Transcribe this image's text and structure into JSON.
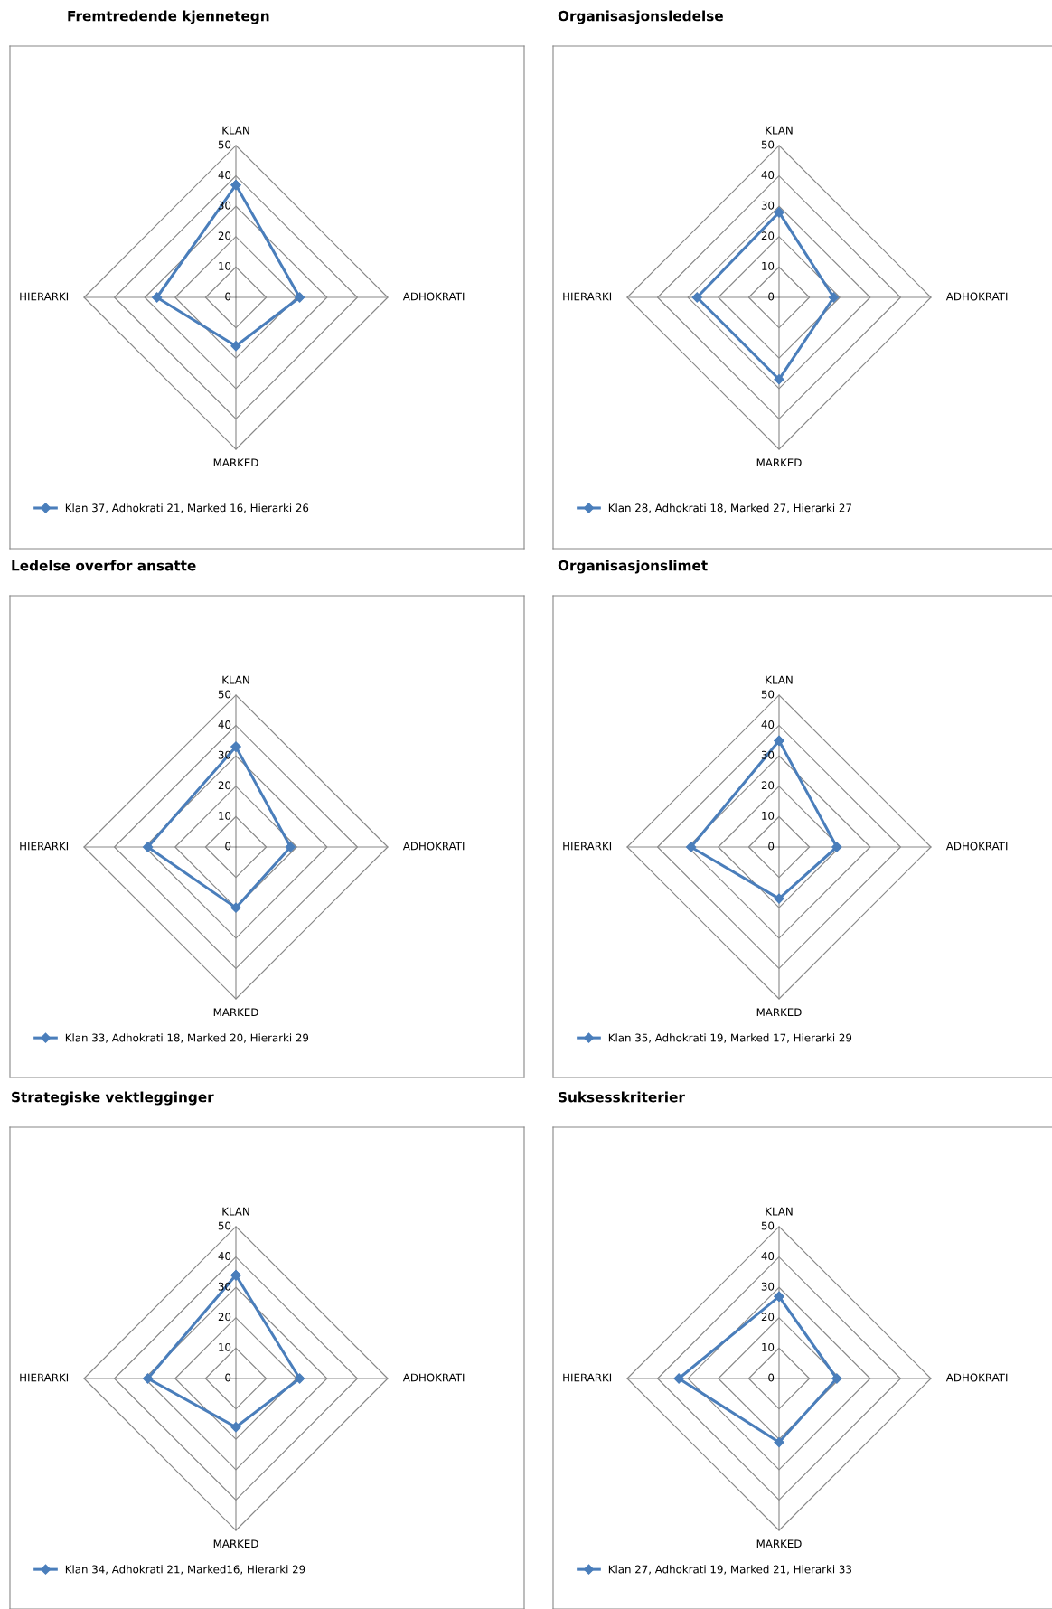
{
  "chart_data": [
    {
      "type": "radar",
      "title": "Fremtredende kjennetegn",
      "categories": [
        "KLAN",
        "ADHOKRATI",
        "MARKED",
        "HIERARKI"
      ],
      "ylim": [
        0,
        50
      ],
      "yticks": [
        0,
        10,
        20,
        30,
        40,
        50
      ],
      "grid": true,
      "marker": "diamond",
      "legend": "bottom left",
      "series": [
        {
          "name": "Klan 37, Adhokrati 21, Marked 16, Hierarki 26",
          "color": "#4a7ebb",
          "values": [
            37,
            21,
            16,
            26
          ]
        }
      ]
    },
    {
      "type": "radar",
      "title": "Organisasjonsledelse",
      "categories": [
        "KLAN",
        "ADHOKRATI",
        "MARKED",
        "HIERARKI"
      ],
      "ylim": [
        0,
        50
      ],
      "yticks": [
        0,
        10,
        20,
        30,
        40,
        50
      ],
      "grid": true,
      "marker": "diamond",
      "legend": "bottom left",
      "series": [
        {
          "name": "Klan 28, Adhokrati 18, Marked 27, Hierarki 27",
          "color": "#4a7ebb",
          "values": [
            28,
            18,
            27,
            27
          ]
        }
      ]
    },
    {
      "type": "radar",
      "title": "Ledelse overfor ansatte",
      "categories": [
        "KLAN",
        "ADHOKRATI",
        "MARKED",
        "HIERARKI"
      ],
      "ylim": [
        0,
        50
      ],
      "yticks": [
        0,
        10,
        20,
        30,
        40,
        50
      ],
      "grid": true,
      "marker": "diamond",
      "legend": "bottom left",
      "series": [
        {
          "name": "Klan 33, Adhokrati 18, Marked 20, Hierarki 29",
          "color": "#4a7ebb",
          "values": [
            33,
            18,
            20,
            29
          ]
        }
      ]
    },
    {
      "type": "radar",
      "title": "Organisasjonslimet",
      "categories": [
        "KLAN",
        "ADHOKRATI",
        "MARKED",
        "HIERARKI"
      ],
      "ylim": [
        0,
        50
      ],
      "yticks": [
        0,
        10,
        20,
        30,
        40,
        50
      ],
      "grid": true,
      "marker": "diamond",
      "legend": "bottom left",
      "series": [
        {
          "name": "Klan 35, Adhokrati 19, Marked 17, Hierarki 29",
          "color": "#4a7ebb",
          "values": [
            35,
            19,
            17,
            29
          ]
        }
      ]
    },
    {
      "type": "radar",
      "title": "Strategiske vektlegginger",
      "categories": [
        "KLAN",
        "ADHOKRATI",
        "MARKED",
        "HIERARKI"
      ],
      "ylim": [
        0,
        50
      ],
      "yticks": [
        0,
        10,
        20,
        30,
        40,
        50
      ],
      "grid": true,
      "marker": "diamond",
      "legend": "bottom left",
      "series": [
        {
          "name": "Klan 34, Adhokrati 21, Marked16, Hierarki 29",
          "color": "#4a7ebb",
          "values": [
            34,
            21,
            16,
            29
          ]
        }
      ]
    },
    {
      "type": "radar",
      "title": "Suksesskriterier",
      "categories": [
        "KLAN",
        "ADHOKRATI",
        "MARKED",
        "HIERARKI"
      ],
      "ylim": [
        0,
        50
      ],
      "yticks": [
        0,
        10,
        20,
        30,
        40,
        50
      ],
      "grid": true,
      "marker": "diamond",
      "legend": "bottom left",
      "series": [
        {
          "name": "Klan 27, Adhokrati 19, Marked 21, Hierarki 33",
          "color": "#4a7ebb",
          "values": [
            27,
            19,
            21,
            33
          ]
        }
      ]
    }
  ]
}
